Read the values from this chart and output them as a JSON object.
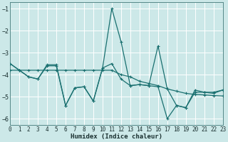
{
  "xlabel": "Humidex (Indice chaleur)",
  "xlim": [
    0,
    23
  ],
  "ylim": [
    -6.3,
    -0.7
  ],
  "yticks": [
    -6,
    -5,
    -4,
    -3,
    -2,
    -1
  ],
  "xticks": [
    0,
    1,
    2,
    3,
    4,
    5,
    6,
    7,
    8,
    9,
    10,
    11,
    12,
    13,
    14,
    15,
    16,
    17,
    18,
    19,
    20,
    21,
    22,
    23
  ],
  "bg_color": "#cce8e8",
  "grid_color": "#ffffff",
  "line_color": "#1a7070",
  "series": [
    {
      "x": [
        0,
        1,
        2,
        3,
        4,
        5,
        6,
        7,
        8,
        9,
        10,
        11,
        12,
        13,
        14,
        15,
        16,
        17,
        18,
        19,
        20,
        21,
        22,
        23
      ],
      "y": [
        -3.5,
        -3.8,
        -4.1,
        -4.2,
        -3.6,
        -3.6,
        -5.4,
        -4.6,
        -4.55,
        -5.2,
        -3.7,
        -3.5,
        -4.2,
        -4.5,
        -4.45,
        -4.5,
        -4.55,
        -6.0,
        -5.4,
        -5.5,
        -4.7,
        -4.8,
        -4.8,
        -4.7
      ]
    },
    {
      "x": [
        0,
        1,
        2,
        3,
        4,
        5,
        6,
        7,
        8,
        9,
        10,
        11,
        12,
        13,
        14,
        15,
        16,
        17,
        18,
        19,
        20,
        21,
        22,
        23
      ],
      "y": [
        -3.8,
        -3.8,
        -3.8,
        -3.8,
        -3.8,
        -3.8,
        -3.8,
        -3.8,
        -3.8,
        -3.8,
        -3.8,
        -3.8,
        -4.0,
        -4.1,
        -4.3,
        -4.4,
        -4.5,
        -4.65,
        -4.75,
        -4.85,
        -4.9,
        -4.92,
        -4.95,
        -4.97
      ]
    },
    {
      "x": [
        0,
        1,
        2,
        3,
        4,
        5,
        6,
        7,
        8,
        9,
        10,
        11,
        12,
        13,
        14,
        15,
        16,
        17,
        18,
        19,
        20,
        21,
        22,
        23
      ],
      "y": [
        -3.5,
        -3.8,
        -4.1,
        -4.2,
        -3.55,
        -3.55,
        -5.4,
        -4.6,
        -4.55,
        -5.2,
        -3.7,
        -1.0,
        -2.5,
        -4.5,
        -4.45,
        -4.5,
        -2.7,
        -4.65,
        -5.4,
        -5.5,
        -4.8,
        -4.8,
        -4.85,
        -4.7
      ]
    }
  ],
  "marker": "+",
  "markersize": 3,
  "linewidth": 0.9
}
